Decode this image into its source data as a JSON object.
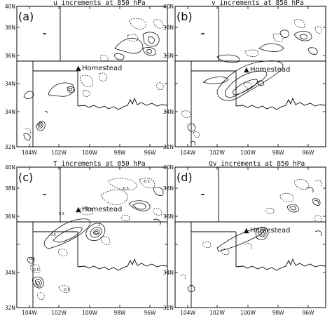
{
  "panels": [
    {
      "label": "(a)",
      "title": "u increments at 850 hPa"
    },
    {
      "label": "(b)",
      "title": "v increments at 850 hPa"
    },
    {
      "label": "(c)",
      "title": "T increments at 850 hPa"
    },
    {
      "label": "(d)",
      "title": "Qv increments at 850 hPa"
    }
  ],
  "lat_ticks": [
    "40N",
    "38N",
    "36N",
    "34N",
    "32N"
  ],
  "lon_ticks": [
    "104W",
    "102W",
    "100W",
    "98W",
    "96W"
  ],
  "marker": {
    "label": "Homestead",
    "symbol": "▲"
  },
  "contour_labels_c": [
    "-0.5",
    "0.5",
    "-0.5",
    "1",
    "0.5",
    "-0.5",
    "-0.5",
    "0.5",
    "-0.5"
  ],
  "colors": {
    "ink": "#111111",
    "frame": "#000000"
  }
}
